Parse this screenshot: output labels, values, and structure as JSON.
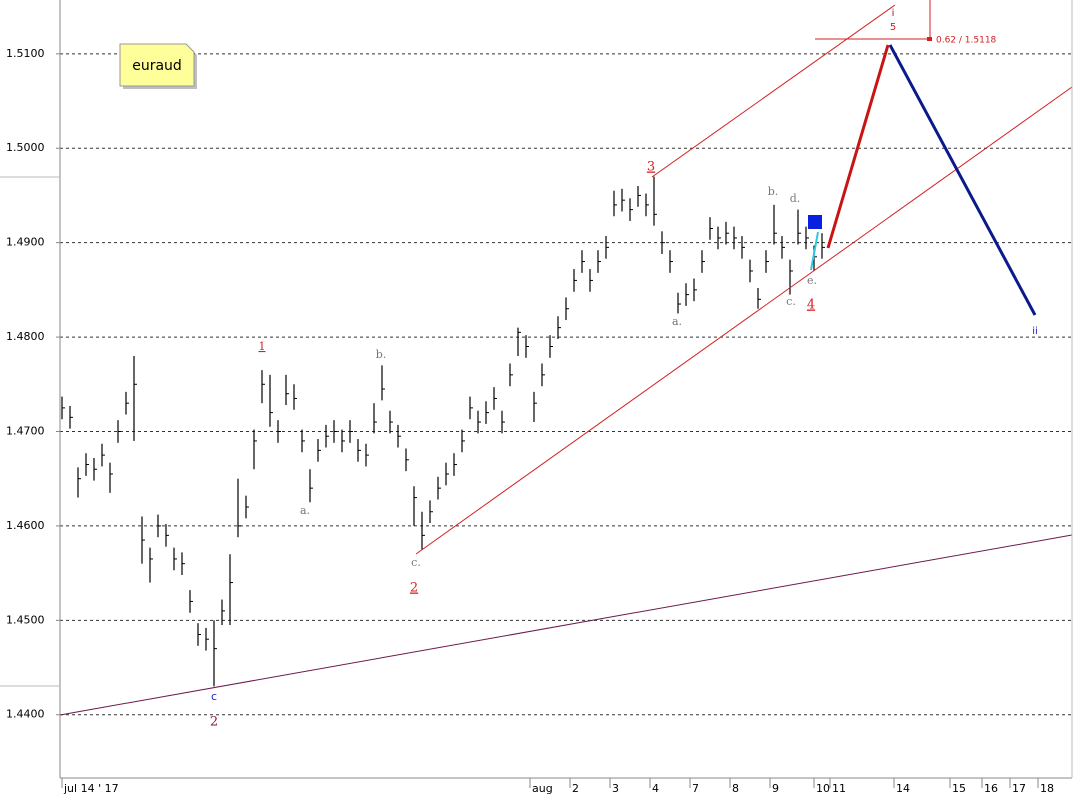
{
  "chart_data": {
    "type": "ohlc",
    "title": "euraud",
    "grid": true,
    "color": "#000000",
    "ylim": [
      1.4333,
      1.5157
    ],
    "yticks": [
      {
        "value": 1.44,
        "label": "1.4400"
      },
      {
        "value": 1.45,
        "label": "1.4500"
      },
      {
        "value": 1.46,
        "label": "1.4600"
      },
      {
        "value": 1.47,
        "label": "1.4700"
      },
      {
        "value": 1.48,
        "label": "1.4800"
      },
      {
        "value": 1.49,
        "label": "1.4900"
      },
      {
        "value": 1.5,
        "label": "1.5000"
      },
      {
        "value": 1.51,
        "label": "1.5100"
      }
    ],
    "xlim": [
      -0.25,
      126.25
    ],
    "xticks": [
      {
        "value": 0,
        "label": "jul 14 ' 17"
      },
      {
        "value": 58.5,
        "label": "aug"
      },
      {
        "value": 63.5,
        "label": "2"
      },
      {
        "value": 68.5,
        "label": "3"
      },
      {
        "value": 73.5,
        "label": "4"
      },
      {
        "value": 78.5,
        "label": "7"
      },
      {
        "value": 83.5,
        "label": "8"
      },
      {
        "value": 88.5,
        "label": "9"
      },
      {
        "value": 94,
        "label": "10"
      },
      {
        "value": 96,
        "label": "11"
      },
      {
        "value": 104,
        "label": "14"
      },
      {
        "value": 111,
        "label": "15"
      },
      {
        "value": 115,
        "label": "16"
      },
      {
        "value": 118.5,
        "label": "17"
      },
      {
        "value": 122,
        "label": "18"
      }
    ],
    "high": [
      1.4737,
      1.4727,
      1.4662,
      1.4677,
      1.4672,
      1.4687,
      1.4667,
      1.4712,
      1.4742,
      1.478,
      1.461,
      1.4577,
      1.4612,
      1.4602,
      1.4577,
      1.4572,
      1.4532,
      1.4497,
      1.4492,
      1.45,
      1.4522,
      1.457,
      1.465,
      1.4632,
      1.4702,
      1.4765,
      1.476,
      1.4712,
      1.476,
      1.475,
      1.4702,
      1.466,
      1.4692,
      1.4707,
      1.4712,
      1.4702,
      1.4712,
      1.4692,
      1.4687,
      1.473,
      1.477,
      1.4722,
      1.4707,
      1.4682,
      1.4642,
      1.4615,
      1.4627,
      1.4652,
      1.4667,
      1.4677,
      1.4702,
      1.4737,
      1.4722,
      1.4732,
      1.4747,
      1.4722,
      1.4772,
      1.481,
      1.4802,
      1.4742,
      1.4772,
      1.4802,
      1.4822,
      1.4842,
      1.4872,
      1.4892,
      1.4872,
      1.4892,
      1.4907,
      1.4955,
      1.4957,
      1.4947,
      1.496,
      1.4952,
      1.497,
      1.4912,
      1.4892,
      1.4847,
      1.4857,
      1.4862,
      1.4892,
      1.4927,
      1.4917,
      1.4922,
      1.4917,
      1.4907,
      1.4882,
      1.4852,
      1.4892,
      1.494,
      1.4907,
      1.4882,
      1.4935,
      1.4917,
      1.4897,
      1.491
    ],
    "low": [
      1.4713,
      1.4703,
      1.463,
      1.4653,
      1.4648,
      1.4663,
      1.4635,
      1.4688,
      1.4718,
      1.469,
      1.456,
      1.454,
      1.4588,
      1.4578,
      1.4553,
      1.4548,
      1.4508,
      1.4473,
      1.4468,
      1.443,
      1.4495,
      1.4495,
      1.4588,
      1.4608,
      1.466,
      1.473,
      1.4705,
      1.4688,
      1.4728,
      1.4723,
      1.4678,
      1.4625,
      1.4668,
      1.4683,
      1.4688,
      1.4678,
      1.4688,
      1.4668,
      1.4663,
      1.4698,
      1.4733,
      1.4698,
      1.4683,
      1.4658,
      1.46,
      1.4575,
      1.4603,
      1.4628,
      1.4643,
      1.4653,
      1.4678,
      1.4713,
      1.4698,
      1.4708,
      1.4723,
      1.4698,
      1.4748,
      1.478,
      1.4778,
      1.471,
      1.4748,
      1.4778,
      1.4798,
      1.4818,
      1.4848,
      1.4868,
      1.4848,
      1.4868,
      1.4883,
      1.4928,
      1.4933,
      1.4923,
      1.4938,
      1.4928,
      1.4918,
      1.4888,
      1.4868,
      1.4825,
      1.4833,
      1.4838,
      1.4868,
      1.4903,
      1.4893,
      1.4898,
      1.4893,
      1.4883,
      1.4858,
      1.483,
      1.4868,
      1.4898,
      1.4883,
      1.4845,
      1.4898,
      1.4893,
      1.487,
      1.4883
    ],
    "close": [
      1.4725,
      1.4715,
      1.465,
      1.4665,
      1.466,
      1.4675,
      1.4655,
      1.47,
      1.473,
      1.475,
      1.4585,
      1.4565,
      1.46,
      1.459,
      1.4565,
      1.456,
      1.452,
      1.4485,
      1.448,
      1.447,
      1.451,
      1.454,
      1.46,
      1.462,
      1.469,
      1.475,
      1.472,
      1.47,
      1.474,
      1.4735,
      1.469,
      1.464,
      1.468,
      1.4695,
      1.47,
      1.469,
      1.47,
      1.468,
      1.4675,
      1.471,
      1.4745,
      1.471,
      1.4695,
      1.467,
      1.463,
      1.459,
      1.4615,
      1.464,
      1.4655,
      1.4665,
      1.469,
      1.4725,
      1.471,
      1.472,
      1.4735,
      1.471,
      1.476,
      1.4805,
      1.479,
      1.473,
      1.476,
      1.479,
      1.481,
      1.483,
      1.486,
      1.488,
      1.486,
      1.488,
      1.4895,
      1.494,
      1.4945,
      1.4935,
      1.495,
      1.494,
      1.493,
      1.49,
      1.488,
      1.4835,
      1.4845,
      1.485,
      1.488,
      1.4915,
      1.4905,
      1.491,
      1.4905,
      1.4895,
      1.487,
      1.484,
      1.488,
      1.491,
      1.4895,
      1.487,
      1.491,
      1.4905,
      1.4885,
      1.4895
    ],
    "annotations": [
      "1",
      "a.",
      "b.",
      "c.",
      "2",
      "c",
      "2",
      "3",
      "a.",
      "b.",
      "c.",
      "d.",
      "e.",
      "4",
      "i",
      "5",
      "0.62 / 1.5118",
      "ii"
    ]
  }
}
